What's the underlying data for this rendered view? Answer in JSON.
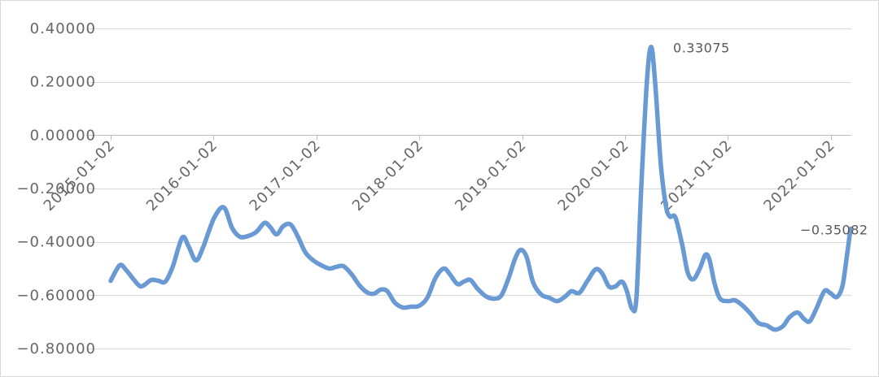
{
  "chart_data": {
    "type": "line",
    "x": [
      "2015-01-02",
      "2015-02-03",
      "2015-02-26",
      "2015-04-10",
      "2015-04-28",
      "2015-05-26",
      "2015-06-21",
      "2015-07-15",
      "2015-08-10",
      "2015-09-13",
      "2015-10-06",
      "2015-11-01",
      "2015-11-27",
      "2016-01-04",
      "2016-02-08",
      "2016-03-08",
      "2016-04-05",
      "2016-05-04",
      "2016-06-02",
      "2016-07-01",
      "2016-07-21",
      "2016-08-13",
      "2016-09-06",
      "2016-10-02",
      "2016-10-28",
      "2016-11-23",
      "2016-12-22",
      "2017-01-19",
      "2017-02-17",
      "2017-03-12",
      "2017-04-07",
      "2017-05-06",
      "2017-06-04",
      "2017-07-03",
      "2017-07-26",
      "2017-08-18",
      "2017-09-10",
      "2017-10-07",
      "2017-11-04",
      "2017-12-03",
      "2018-01-01",
      "2018-01-30",
      "2018-02-28",
      "2018-03-29",
      "2018-04-18",
      "2018-05-17",
      "2018-06-09",
      "2018-07-02",
      "2018-07-28",
      "2018-08-26",
      "2018-09-24",
      "2018-10-20",
      "2018-11-15",
      "2018-12-08",
      "2018-12-28",
      "2019-01-18",
      "2019-02-10",
      "2019-03-11",
      "2019-04-09",
      "2019-05-07",
      "2019-06-05",
      "2019-06-26",
      "2019-07-24",
      "2019-08-22",
      "2019-09-20",
      "2019-10-13",
      "2019-11-06",
      "2019-11-29",
      "2019-12-22",
      "2020-01-08",
      "2020-01-28",
      "2020-02-12",
      "2020-02-29",
      "2020-03-20",
      "2020-04-04",
      "2020-04-18",
      "2020-05-08",
      "2020-05-26",
      "2020-06-09",
      "2020-06-29",
      "2020-07-23",
      "2020-08-12",
      "2020-09-01",
      "2020-09-24",
      "2020-10-14",
      "2020-10-29",
      "2020-11-15",
      "2020-12-05",
      "2021-01-03",
      "2021-01-26",
      "2021-02-21",
      "2021-03-22",
      "2021-04-20",
      "2021-05-19",
      "2021-06-17",
      "2021-07-16",
      "2021-08-08",
      "2021-09-06",
      "2021-09-29",
      "2021-10-19",
      "2021-11-11",
      "2021-12-10",
      "2021-12-30",
      "2022-01-23",
      "2022-02-12",
      "2022-02-26",
      "2022-03-13"
    ],
    "series": [
      {
        "values": [
          -0.546,
          -0.488,
          -0.506,
          -0.561,
          -0.564,
          -0.543,
          -0.546,
          -0.549,
          -0.494,
          -0.384,
          -0.418,
          -0.47,
          -0.418,
          -0.311,
          -0.271,
          -0.348,
          -0.381,
          -0.378,
          -0.363,
          -0.329,
          -0.344,
          -0.372,
          -0.341,
          -0.335,
          -0.381,
          -0.439,
          -0.47,
          -0.488,
          -0.5,
          -0.494,
          -0.491,
          -0.521,
          -0.564,
          -0.591,
          -0.594,
          -0.579,
          -0.585,
          -0.628,
          -0.646,
          -0.643,
          -0.64,
          -0.61,
          -0.536,
          -0.5,
          -0.518,
          -0.558,
          -0.549,
          -0.543,
          -0.576,
          -0.604,
          -0.613,
          -0.601,
          -0.536,
          -0.463,
          -0.43,
          -0.457,
          -0.552,
          -0.598,
          -0.61,
          -0.622,
          -0.604,
          -0.585,
          -0.591,
          -0.546,
          -0.503,
          -0.518,
          -0.567,
          -0.567,
          -0.549,
          -0.582,
          -0.652,
          -0.607,
          -0.195,
          0.201,
          0.33075,
          0.201,
          -0.104,
          -0.262,
          -0.305,
          -0.308,
          -0.409,
          -0.515,
          -0.54,
          -0.5,
          -0.448,
          -0.47,
          -0.555,
          -0.613,
          -0.622,
          -0.619,
          -0.637,
          -0.668,
          -0.704,
          -0.713,
          -0.729,
          -0.716,
          -0.683,
          -0.665,
          -0.689,
          -0.698,
          -0.652,
          -0.585,
          -0.591,
          -0.607,
          -0.567,
          -0.47,
          -0.35082
        ]
      }
    ],
    "xlim": [
      "2015-01-02",
      "2022-03-13"
    ],
    "ylim": [
      -0.8,
      0.4
    ],
    "x_ticks": [
      "2015-01-02",
      "2016-01-02",
      "2017-01-02",
      "2018-01-02",
      "2019-01-02",
      "2020-01-02",
      "2021-01-02",
      "2022-01-02"
    ],
    "y_ticks": [
      {
        "value": 0.4,
        "label": "0.40000"
      },
      {
        "value": 0.2,
        "label": "0.20000"
      },
      {
        "value": 0.0,
        "label": "0.00000"
      },
      {
        "value": -0.2,
        "label": "−0.20000"
      },
      {
        "value": -0.4,
        "label": "−0.40000"
      },
      {
        "value": -0.6,
        "label": "−0.60000"
      },
      {
        "value": -0.8,
        "label": "−0.80000"
      }
    ],
    "data_labels": [
      {
        "x": "2020-04-04",
        "y": 0.33075,
        "text": "0.33075"
      },
      {
        "x": "2022-03-13",
        "y": -0.35082,
        "text": "−0.35082"
      }
    ],
    "grid": true,
    "line_color": "#6a9ad4",
    "grid_color": "#d9d9d9",
    "axis_color": "#bfbfbf",
    "text_color": "#666666"
  }
}
